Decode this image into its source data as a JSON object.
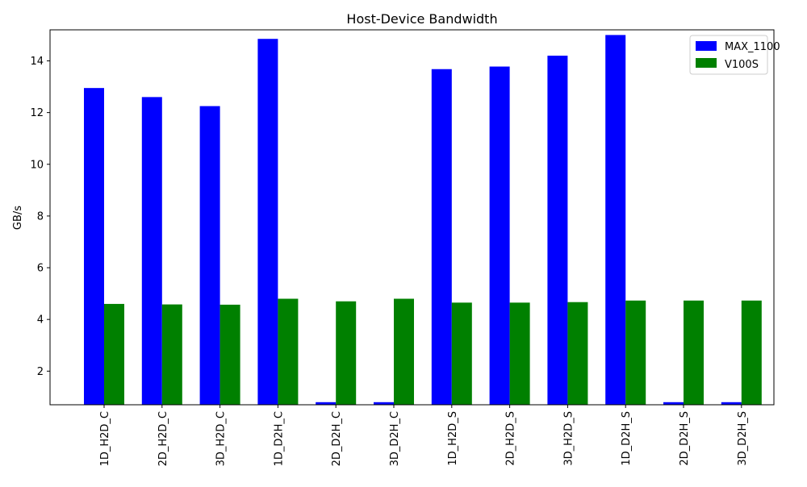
{
  "chart_data": {
    "type": "bar",
    "title": "Host-Device Bandwidth",
    "xlabel": "",
    "ylabel": "GB/s",
    "categories": [
      "1D_H2D_C",
      "2D_H2D_C",
      "3D_H2D_C",
      "1D_D2H_C",
      "2D_D2H_C",
      "3D_D2H_C",
      "1D_H2D_S",
      "2D_H2D_S",
      "3D_H2D_S",
      "1D_D2H_S",
      "2D_D2H_S",
      "3D_D2H_S"
    ],
    "series": [
      {
        "name": "MAX_1100",
        "color": "#0000ff",
        "values": [
          12.95,
          12.6,
          12.25,
          14.85,
          0.8,
          0.8,
          13.68,
          13.78,
          14.2,
          15.0,
          0.8,
          0.8
        ]
      },
      {
        "name": "V100S",
        "color": "#008000",
        "values": [
          4.6,
          4.58,
          4.57,
          4.8,
          4.7,
          4.8,
          4.65,
          4.65,
          4.67,
          4.73,
          4.73,
          4.73
        ]
      }
    ],
    "ylim": [
      0.7,
      15.2
    ],
    "yticks": [
      2,
      4,
      6,
      8,
      10,
      12,
      14
    ],
    "grid": false,
    "legend_position": "upper right"
  }
}
